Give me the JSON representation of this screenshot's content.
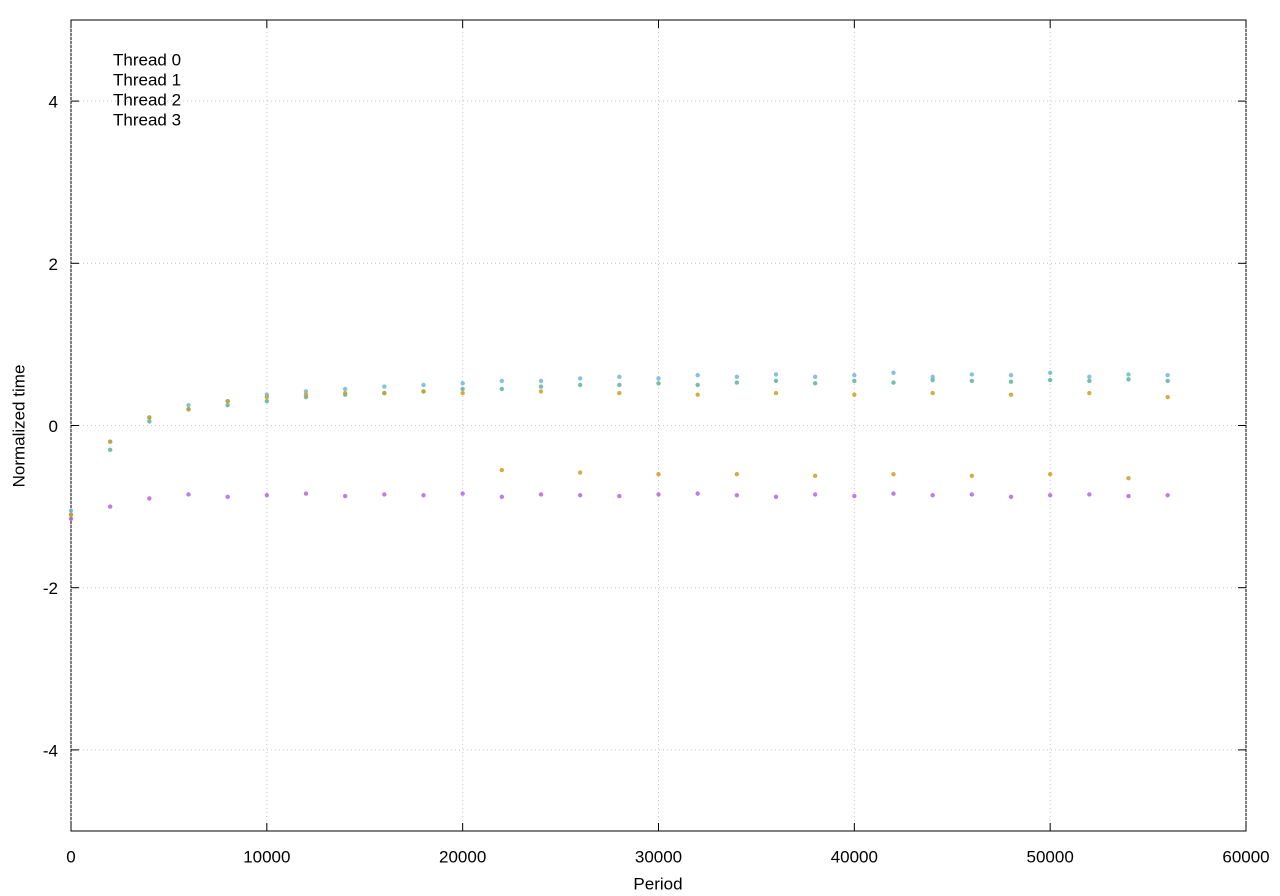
{
  "chart_data": {
    "type": "scatter",
    "xlabel": "Period",
    "ylabel": "Normalized time",
    "x": [
      0,
      2000,
      4000,
      6000,
      8000,
      10000,
      12000,
      14000,
      16000,
      18000,
      20000,
      22000,
      24000,
      26000,
      28000,
      30000,
      32000,
      34000,
      36000,
      38000,
      40000,
      42000,
      44000,
      46000,
      48000,
      50000,
      52000,
      54000,
      56000
    ],
    "series": [
      {
        "name": "Thread 0",
        "color": "#b366e0",
        "values": [
          -1.15,
          -1.0,
          -0.9,
          -0.85,
          -0.88,
          -0.86,
          -0.84,
          -0.87,
          -0.85,
          -0.86,
          -0.84,
          -0.88,
          -0.85,
          -0.86,
          -0.87,
          -0.85,
          -0.84,
          -0.86,
          -0.88,
          -0.85,
          -0.87,
          -0.84,
          -0.86,
          -0.85,
          -0.88,
          -0.86,
          -0.85,
          -0.87,
          -0.86
        ]
      },
      {
        "name": "Thread 1",
        "color": "#5fb39a",
        "values": [
          -1.1,
          -0.3,
          0.05,
          0.2,
          0.25,
          0.3,
          0.35,
          0.38,
          0.4,
          0.42,
          0.45,
          0.45,
          0.48,
          0.5,
          0.5,
          0.52,
          0.5,
          0.53,
          0.55,
          0.52,
          0.55,
          0.53,
          0.56,
          0.55,
          0.54,
          0.56,
          0.55,
          0.57,
          0.55
        ]
      },
      {
        "name": "Thread 2",
        "color": "#6fb8d6",
        "values": [
          -1.05,
          -0.2,
          0.1,
          0.25,
          0.3,
          0.38,
          0.42,
          0.45,
          0.48,
          0.5,
          0.52,
          0.55,
          0.55,
          0.58,
          0.6,
          0.58,
          0.62,
          0.6,
          0.63,
          0.6,
          0.62,
          0.65,
          0.6,
          0.63,
          0.62,
          0.65,
          0.6,
          0.63,
          0.62
        ]
      },
      {
        "name": "Thread 3",
        "color": "#c9a02a",
        "values": [
          -1.1,
          -0.2,
          0.1,
          0.2,
          0.3,
          0.35,
          0.38,
          0.4,
          0.4,
          0.42,
          0.4,
          -0.55,
          0.42,
          -0.58,
          0.4,
          -0.6,
          0.38,
          -0.6,
          0.4,
          -0.62,
          0.38,
          -0.6,
          0.4,
          -0.62,
          0.38,
          -0.6,
          0.4,
          -0.65,
          0.35
        ]
      }
    ],
    "xlim": [
      0,
      60000
    ],
    "xticks": [
      0,
      10000,
      20000,
      30000,
      40000,
      50000,
      60000
    ],
    "ylim": [
      -5,
      5
    ],
    "yticks": [
      -4,
      -2,
      0,
      2,
      4
    ],
    "grid": true,
    "legend": "upper-left"
  }
}
